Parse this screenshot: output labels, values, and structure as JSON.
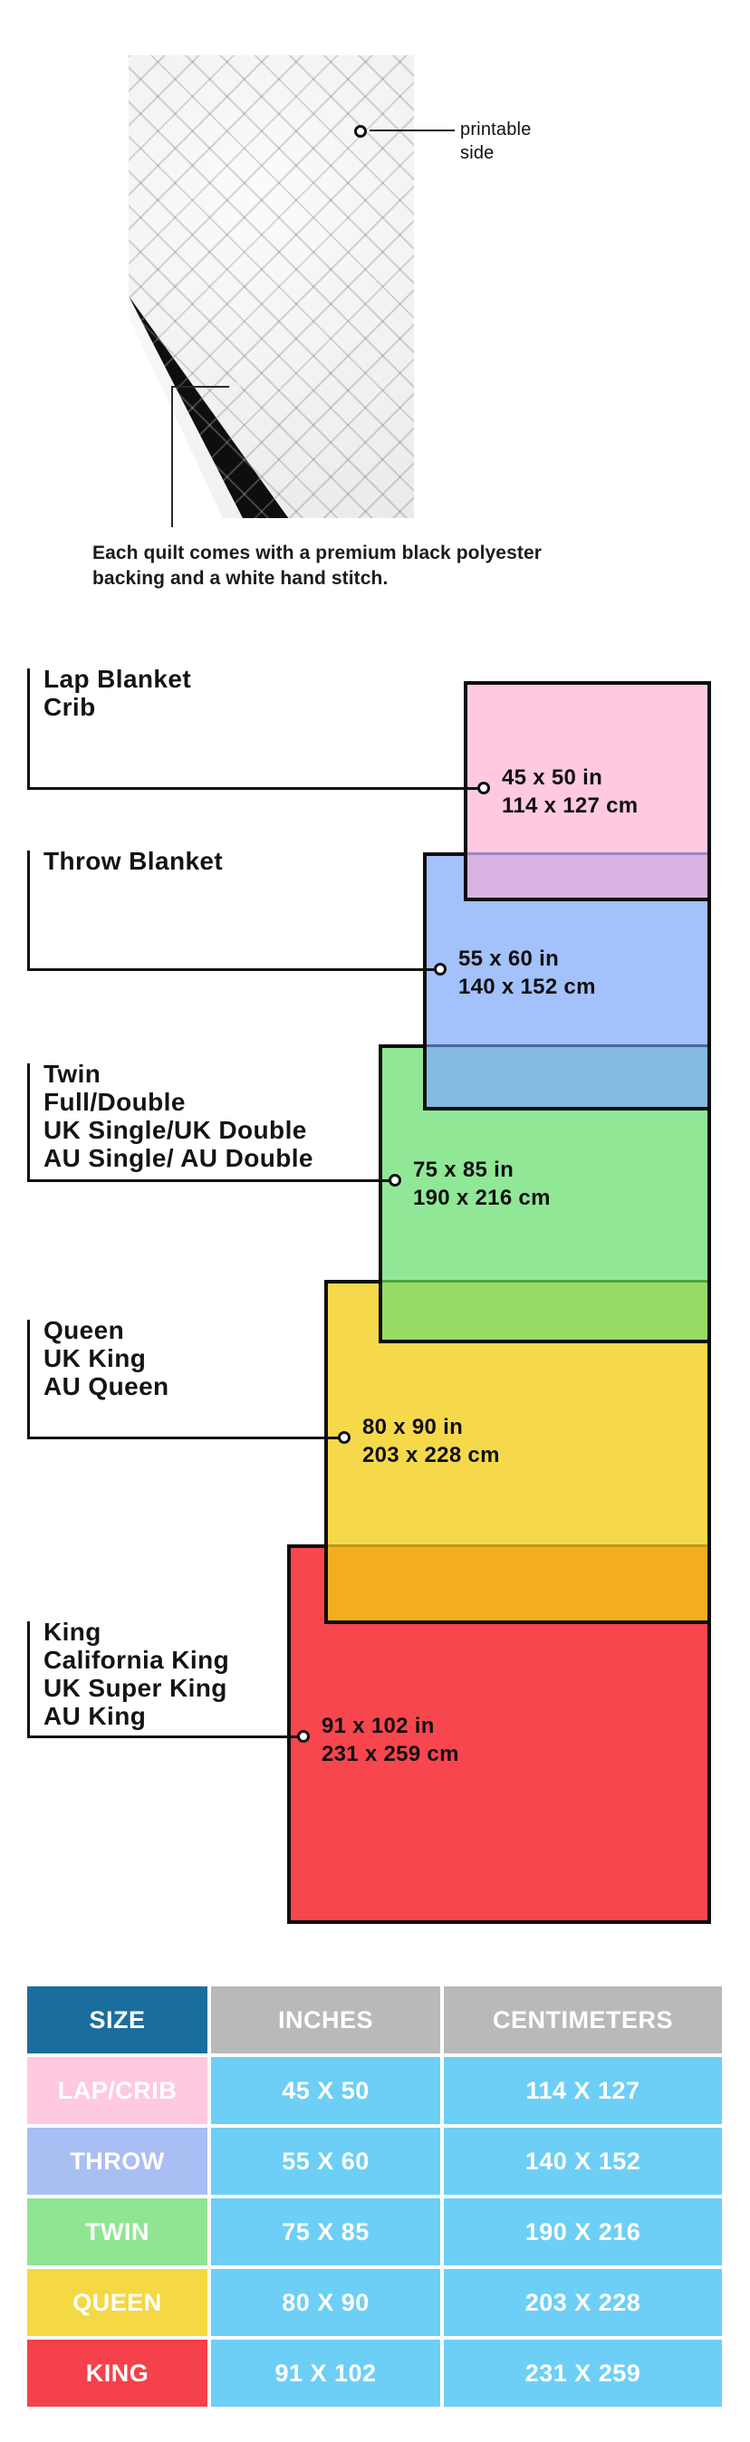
{
  "figure": {
    "printable_side": [
      "printable",
      "side"
    ],
    "backing_caption": [
      "Each quilt comes with a premium black polyester",
      "backing and a white hand stitch."
    ]
  },
  "diagram": {
    "line_color": "#111111",
    "border_color": "#0d0d0d",
    "sizes": [
      {
        "id": "lap",
        "labels": [
          "Lap Blanket",
          "Crib"
        ],
        "inches": "45 x 50 in",
        "cm": "114 x 127 cm",
        "fill": "#ffc9e2",
        "overlap_fill": "#d9b3e2",
        "overlap_line": "#a184c4"
      },
      {
        "id": "throw",
        "labels": [
          "Throw Blanket"
        ],
        "inches": "55 x 60 in",
        "cm": "140 x 152 cm",
        "fill": "#a3c1fb",
        "overlap_fill": "#84bbe2",
        "overlap_line": "#46699b"
      },
      {
        "id": "twin",
        "labels": [
          "Twin",
          "Full/Double",
          "UK Single/UK Double",
          "AU Single/ AU Double"
        ],
        "inches": "75 x 85 in",
        "cm": "190 x 216 cm",
        "fill": "#90e897",
        "overlap_fill": "#98dc66",
        "overlap_line": "#4fa43c"
      },
      {
        "id": "queen",
        "labels": [
          "Queen",
          "UK King",
          "AU Queen"
        ],
        "inches": "80 x 90 in",
        "cm": "203 x 228 cm",
        "fill": "#f5d94b",
        "overlap_fill": "#f4ad1d",
        "overlap_line": "#bd9a12"
      },
      {
        "id": "king",
        "labels": [
          "King",
          "California King",
          "UK Super King",
          "AU King"
        ],
        "inches": "91 x 102 in",
        "cm": "231 x 259 cm",
        "fill": "#f8464f",
        "overlap_fill": null,
        "overlap_line": null
      }
    ]
  },
  "table": {
    "headers": [
      "SIZE",
      "INCHES",
      "CENTIMETERS"
    ],
    "header_size_color": "#1a6e9e",
    "header_other_color": "#b9b9b9",
    "data_cell_color": "#6dcff6",
    "rows": [
      {
        "size": "LAP/CRIB",
        "inches": "45 X 50",
        "cm": "114 X 127",
        "color": "#ffc9e0"
      },
      {
        "size": "THROW",
        "inches": "55 X 60",
        "cm": "140 X 152",
        "color": "#a9bef2"
      },
      {
        "size": "TWIN",
        "inches": "75 X 85",
        "cm": "190 X 216",
        "color": "#90e593"
      },
      {
        "size": "QUEEN",
        "inches": "80 X 90",
        "cm": "203 X 228",
        "color": "#f4d844"
      },
      {
        "size": "KING",
        "inches": "91 X 102",
        "cm": "231 X 259",
        "color": "#f4414b"
      }
    ]
  }
}
